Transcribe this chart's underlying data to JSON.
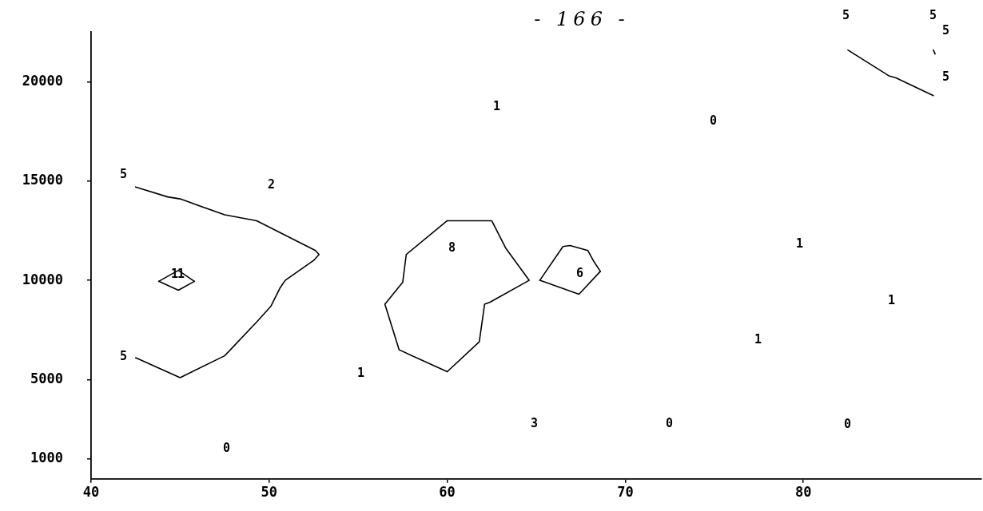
{
  "chart_data": {
    "type": "line",
    "xlim": [
      40,
      90
    ],
    "xticks": [
      40,
      50,
      60,
      70,
      80
    ],
    "ylim": [
      0,
      22500
    ],
    "yticks": [
      1000,
      5000,
      10000,
      15000,
      20000
    ],
    "marker": "none",
    "line_style": "solid",
    "series": [
      {
        "color": "#000000",
        "x": [
          42.5,
          44.3,
          45,
          47.5,
          49.3,
          52.6,
          52.8,
          52.5,
          50.9,
          50.6,
          50.1,
          49.3,
          47.5,
          45,
          42.5
        ],
        "values": [
          14700,
          14200,
          14100,
          13300,
          13000,
          11500,
          11300,
          11000,
          10000,
          9600,
          8700,
          7900,
          6200,
          5100,
          6100
        ]
      },
      {
        "color": "#000000",
        "x": [
          43.8,
          44.9,
          45.8
        ],
        "values": [
          9950,
          10500,
          9950
        ]
      },
      {
        "color": "#000000",
        "x": [
          45.8,
          44.9,
          43.8
        ],
        "values": [
          9950,
          9500,
          9950
        ]
      },
      {
        "color": "#000000",
        "x": [
          60,
          62.5,
          63.3,
          64.6,
          62.4,
          62.1,
          61.8,
          60
        ],
        "values": [
          13000,
          13000,
          11600,
          10000,
          8900,
          8800,
          6900,
          5400
        ]
      },
      {
        "color": "#000000",
        "x": [
          60,
          57.3,
          56.5,
          57.5,
          57.7,
          60
        ],
        "values": [
          5400,
          6500,
          8800,
          9900,
          11300,
          13000
        ]
      },
      {
        "color": "#000000",
        "x": [
          65.2,
          66.5,
          66.9,
          67.9,
          68.2,
          68.6
        ],
        "values": [
          10000,
          11700,
          11750,
          11500,
          11000,
          10450
        ]
      },
      {
        "color": "#000000",
        "x": [
          68.6,
          67.4,
          65.2
        ],
        "values": [
          10450,
          9300,
          10000
        ]
      },
      {
        "color": "#000000",
        "x": [
          82.5,
          84.8,
          85.2,
          87.3
        ],
        "values": [
          21600,
          20300,
          20200,
          19300
        ]
      },
      {
        "color": "#000000",
        "x": [
          87.3,
          87.4
        ],
        "values": [
          21600,
          21400
        ]
      }
    ],
    "annotations": [
      "- 166 -",
      "5",
      "2",
      "1",
      "0",
      "5",
      "5",
      "5",
      "5",
      "8",
      "11",
      "6",
      "1",
      "1",
      "1",
      "5",
      "1",
      "3",
      "0",
      "0",
      "0"
    ]
  }
}
